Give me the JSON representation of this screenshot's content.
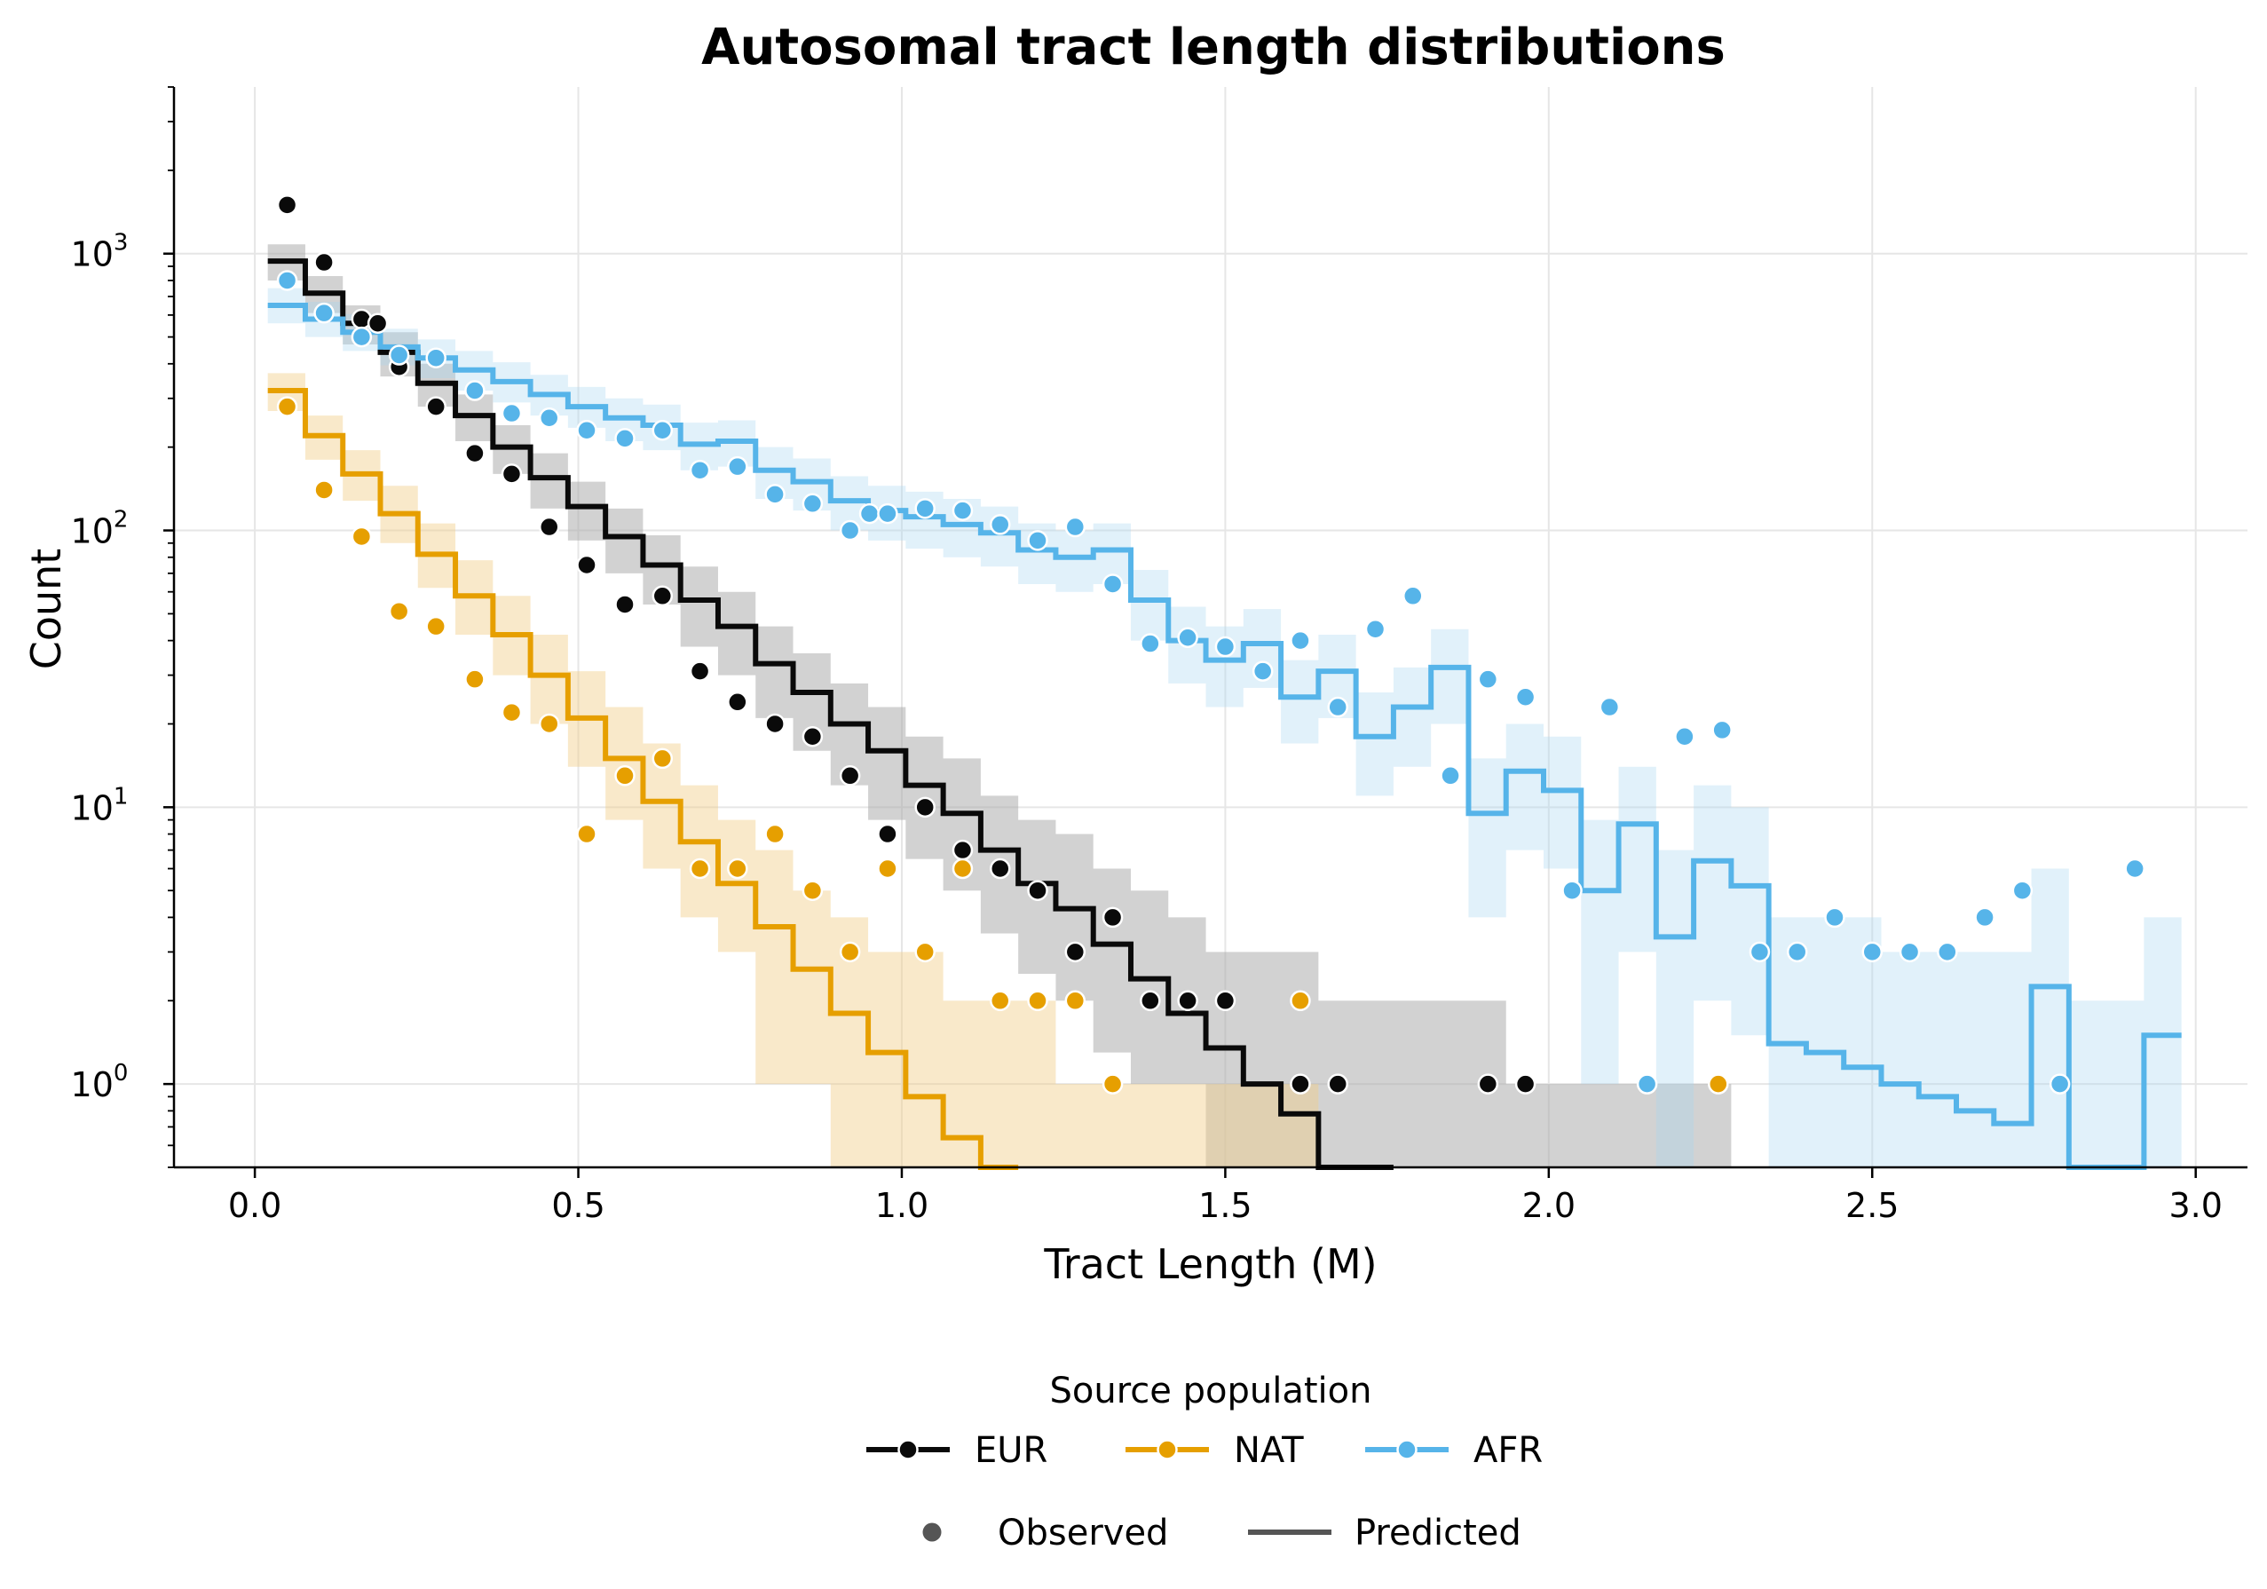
{
  "chart_data": {
    "type": "line",
    "title": "Autosomal tract length distributions",
    "xlabel": "Tract Length (M)",
    "ylabel": "Count",
    "xlim": [
      -0.125,
      3.08
    ],
    "ylim": [
      0.5,
      4000
    ],
    "yscale": "log",
    "grid": true,
    "x_ticks": [
      "0.0",
      "0.5",
      "1.0",
      "1.5",
      "2.0",
      "2.5",
      "3.0"
    ],
    "y_ticks": [
      {
        "value": 1,
        "exp": "0"
      },
      {
        "value": 10,
        "exp": "1"
      },
      {
        "value": 100,
        "exp": "2"
      },
      {
        "value": 1000,
        "exp": "3"
      }
    ],
    "bin_width": 0.058,
    "legend": {
      "title": "Source population",
      "placement": "bottom-center",
      "entries": [
        "EUR",
        "NAT",
        "AFR"
      ],
      "style_entries": [
        "Observed",
        "Predicted"
      ]
    },
    "series": [
      {
        "name": "EUR",
        "color": "#0a0a0a",
        "band_color": "#a6a6a6",
        "band_opacity": 0.5,
        "observed": [
          [
            0.05,
            1500
          ],
          [
            0.107,
            930
          ],
          [
            0.165,
            580
          ],
          [
            0.19,
            560
          ],
          [
            0.223,
            390
          ],
          [
            0.28,
            280
          ],
          [
            0.34,
            190
          ],
          [
            0.397,
            160
          ],
          [
            0.455,
            103
          ],
          [
            0.513,
            75
          ],
          [
            0.572,
            54
          ],
          [
            0.63,
            58
          ],
          [
            0.688,
            31
          ],
          [
            0.746,
            24
          ],
          [
            0.804,
            20
          ],
          [
            0.862,
            18
          ],
          [
            0.92,
            13
          ],
          [
            0.978,
            8
          ],
          [
            1.036,
            10
          ],
          [
            1.094,
            7
          ],
          [
            1.152,
            6
          ],
          [
            1.21,
            5
          ],
          [
            1.268,
            3
          ],
          [
            1.326,
            4
          ],
          [
            1.384,
            2
          ],
          [
            1.442,
            2
          ],
          [
            1.5,
            2
          ],
          [
            1.616,
            1
          ],
          [
            1.674,
            1
          ],
          [
            1.906,
            1
          ],
          [
            1.964,
            1
          ]
        ],
        "predicted": [
          940,
          720,
          560,
          440,
          340,
          260,
          200,
          155,
          122,
          95,
          75,
          56,
          45,
          33,
          26,
          20,
          16,
          12,
          9.5,
          7,
          5.3,
          4.3,
          3.2,
          2.4,
          1.8,
          1.35,
          1.0,
          0.78,
          0.5,
          0.5
        ],
        "band_low": [
          800,
          610,
          470,
          360,
          280,
          210,
          160,
          120,
          92,
          70,
          54,
          38,
          30,
          21,
          16,
          12,
          9,
          6.5,
          5,
          3.5,
          2.5,
          2,
          1.3,
          1,
          1,
          0.5,
          0.5,
          0.5,
          0.5,
          0.5,
          0.5,
          0.5,
          0.5,
          0.5,
          0.5,
          0.5,
          0.5,
          0.5,
          0.5
        ],
        "band_high": [
          1080,
          830,
          650,
          520,
          400,
          310,
          240,
          190,
          150,
          120,
          96,
          74,
          60,
          45,
          36,
          28,
          23,
          18,
          15,
          11,
          9,
          8,
          6,
          5,
          4,
          3,
          3,
          3,
          2,
          2,
          2,
          2,
          2,
          1,
          1,
          1,
          1,
          1,
          1
        ]
      },
      {
        "name": "NAT",
        "color": "#e69f00",
        "band_color": "#f2cf8a",
        "band_opacity": 0.45,
        "observed": [
          [
            0.05,
            280
          ],
          [
            0.107,
            140
          ],
          [
            0.165,
            95
          ],
          [
            0.223,
            51
          ],
          [
            0.28,
            45
          ],
          [
            0.34,
            29
          ],
          [
            0.397,
            22
          ],
          [
            0.455,
            20
          ],
          [
            0.513,
            8
          ],
          [
            0.572,
            13
          ],
          [
            0.63,
            15
          ],
          [
            0.688,
            6
          ],
          [
            0.746,
            6
          ],
          [
            0.804,
            8
          ],
          [
            0.862,
            5
          ],
          [
            0.92,
            3
          ],
          [
            0.978,
            6
          ],
          [
            1.036,
            3
          ],
          [
            1.094,
            6
          ],
          [
            1.152,
            2
          ],
          [
            1.21,
            2
          ],
          [
            1.268,
            2
          ],
          [
            1.326,
            1
          ],
          [
            1.616,
            2
          ],
          [
            2.262,
            1
          ]
        ],
        "predicted": [
          320,
          220,
          160,
          115,
          82,
          58,
          42,
          30,
          21,
          15,
          10.5,
          7.5,
          5.3,
          3.7,
          2.6,
          1.8,
          1.3,
          0.9,
          0.64,
          0.45
        ],
        "band_low": [
          270,
          180,
          128,
          90,
          62,
          42,
          30,
          20,
          14,
          9,
          6,
          4,
          3,
          1,
          1,
          0.5,
          0.5,
          0.5,
          0.5,
          0.5,
          0.5,
          0.5,
          0.5,
          0.5,
          0.5,
          0.5,
          0.5,
          0.5
        ],
        "band_high": [
          370,
          260,
          195,
          145,
          106,
          78,
          58,
          42,
          31,
          23,
          17,
          12,
          9,
          7,
          5,
          4,
          3,
          3,
          2,
          2,
          2,
          1,
          1,
          1,
          1,
          1,
          1,
          1
        ]
      },
      {
        "name": "AFR",
        "color": "#56b4e9",
        "band_color": "#a9d6f2",
        "band_opacity": 0.35,
        "observed": [
          [
            0.05,
            800
          ],
          [
            0.107,
            610
          ],
          [
            0.165,
            500
          ],
          [
            0.223,
            430
          ],
          [
            0.28,
            420
          ],
          [
            0.34,
            320
          ],
          [
            0.397,
            265
          ],
          [
            0.455,
            255
          ],
          [
            0.513,
            230
          ],
          [
            0.572,
            215
          ],
          [
            0.63,
            230
          ],
          [
            0.688,
            165
          ],
          [
            0.746,
            170
          ],
          [
            0.804,
            135
          ],
          [
            0.862,
            125
          ],
          [
            0.92,
            100
          ],
          [
            0.95,
            115
          ],
          [
            0.978,
            115
          ],
          [
            1.036,
            120
          ],
          [
            1.094,
            118
          ],
          [
            1.152,
            105
          ],
          [
            1.21,
            92
          ],
          [
            1.268,
            103
          ],
          [
            1.326,
            64
          ],
          [
            1.384,
            39
          ],
          [
            1.442,
            41
          ],
          [
            1.5,
            38
          ],
          [
            1.558,
            31
          ],
          [
            1.616,
            40
          ],
          [
            1.674,
            23
          ],
          [
            1.732,
            44
          ],
          [
            1.79,
            58
          ],
          [
            1.848,
            13
          ],
          [
            1.906,
            29
          ],
          [
            1.964,
            25
          ],
          [
            2.036,
            5
          ],
          [
            2.094,
            23
          ],
          [
            2.152,
            1
          ],
          [
            2.21,
            18
          ],
          [
            2.268,
            19
          ],
          [
            2.326,
            3
          ],
          [
            2.384,
            3
          ],
          [
            2.442,
            4
          ],
          [
            2.5,
            3
          ],
          [
            2.558,
            3
          ],
          [
            2.616,
            3
          ],
          [
            2.674,
            4
          ],
          [
            2.732,
            5
          ],
          [
            2.79,
            1
          ],
          [
            2.906,
            6
          ]
        ],
        "predicted": [
          650,
          580,
          520,
          460,
          420,
          380,
          345,
          310,
          280,
          255,
          240,
          205,
          210,
          165,
          150,
          128,
          118,
          112,
          105,
          98,
          85,
          80,
          85,
          56,
          40,
          34,
          39,
          25,
          31,
          18,
          23,
          32,
          9.5,
          13.5,
          11.5,
          5,
          8.7,
          3.4,
          6.4,
          5.2,
          1.4,
          1.3,
          1.15,
          1.0,
          0.9,
          0.8,
          0.72,
          2.25,
          0.45,
          0.45,
          1.5
        ],
        "band_low": [
          560,
          500,
          445,
          395,
          355,
          320,
          290,
          260,
          235,
          210,
          195,
          165,
          170,
          130,
          118,
          100,
          92,
          86,
          80,
          74,
          64,
          60,
          64,
          40,
          28,
          23,
          27,
          17,
          21,
          11,
          14,
          20,
          4,
          7,
          6,
          1,
          3,
          0.5,
          2,
          1.5,
          0.5,
          0.5,
          0.5,
          0.5,
          0.5,
          0.5,
          0.5,
          0.5,
          0.5,
          0.5,
          0.5
        ],
        "band_high": [
          750,
          670,
          605,
          535,
          490,
          445,
          405,
          365,
          330,
          300,
          285,
          245,
          250,
          200,
          182,
          157,
          145,
          138,
          130,
          122,
          106,
          100,
          106,
          72,
          53,
          45,
          52,
          34,
          42,
          26,
          32,
          44,
          15,
          20,
          18,
          9,
          14,
          7,
          12,
          10,
          4,
          4,
          4,
          3,
          3,
          3,
          3,
          6,
          2,
          2,
          4
        ]
      }
    ]
  }
}
